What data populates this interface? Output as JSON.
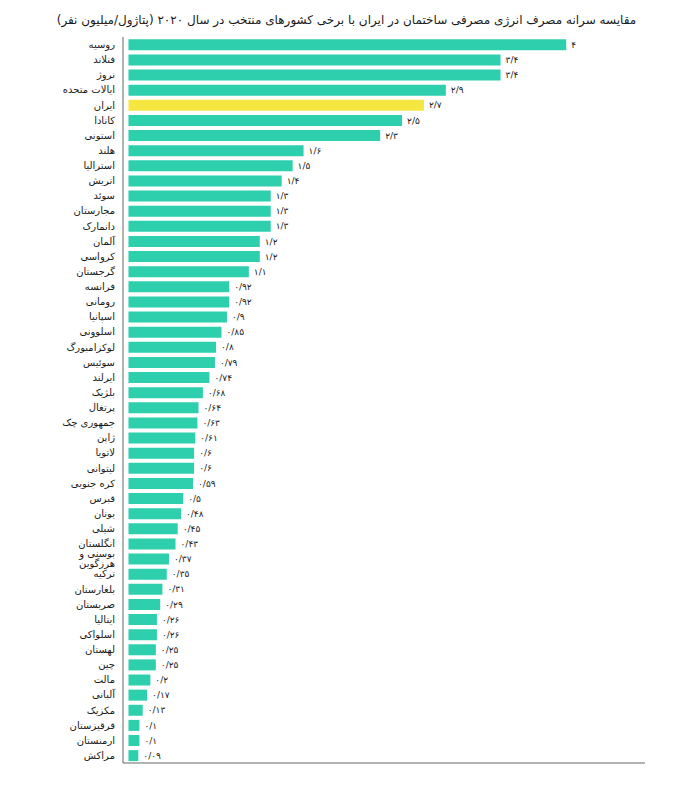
{
  "chart_data": {
    "type": "bar",
    "orientation": "horizontal",
    "title": "مقایسه سرانه مصرف انرژی مصرفی ساختمان در ایران با برخی کشورهای منتخب در سال ۲۰۲۰ (پتاژول/میلیون نفر)",
    "categories": [
      "روسیه",
      "فنلاند",
      "نروژ",
      "ایالات متحده",
      "ایران",
      "کانادا",
      "استونی",
      "هلند",
      "استرالیا",
      "اتریش",
      "سوئد",
      "مجارستان",
      "دانمارک",
      "آلمان",
      "کرواسی",
      "گرجستان",
      "فرانسه",
      "رومانی",
      "اسپانیا",
      "اسلوونی",
      "لوکزامبورگ",
      "سوئیس",
      "ایرلند",
      "بلژیک",
      "پرتغال",
      "جمهوری چک",
      "ژاپن",
      "لاتویا",
      "لیتوانی",
      "کره جنوبی",
      "قبرس",
      "یونان",
      "شیلی",
      "انگلستان",
      "بوسنی و هرزگوین",
      "ترکیه",
      "بلغارستان",
      "صربستان",
      "ایتالیا",
      "اسلواکی",
      "لهستان",
      "چین",
      "مالت",
      "آلبانی",
      "مکزیک",
      "قرقیزستان",
      "ارمنستان",
      "مراکش"
    ],
    "values": [
      4.0,
      3.4,
      3.4,
      2.9,
      2.7,
      2.5,
      2.3,
      1.6,
      1.5,
      1.4,
      1.3,
      1.3,
      1.3,
      1.2,
      1.2,
      1.1,
      0.92,
      0.92,
      0.9,
      0.85,
      0.8,
      0.79,
      0.74,
      0.68,
      0.64,
      0.63,
      0.61,
      0.6,
      0.6,
      0.59,
      0.5,
      0.48,
      0.45,
      0.43,
      0.37,
      0.35,
      0.31,
      0.29,
      0.26,
      0.26,
      0.25,
      0.25,
      0.2,
      0.17,
      0.13,
      0.1,
      0.1,
      0.09
    ],
    "value_labels": [
      "۴",
      "۳/۴",
      "۳/۴",
      "۲/۹",
      "۲/۷",
      "۲/۵",
      "۲/۳",
      "۱/۶",
      "۱/۵",
      "۱/۴",
      "۱/۳",
      "۱/۳",
      "۱/۳",
      "۱/۲",
      "۱/۲",
      "۱/۱",
      "۰/۹۲",
      "۰/۹۲",
      "۰/۹",
      "۰/۸۵",
      "۰/۸",
      "۰/۷۹",
      "۰/۷۴",
      "۰/۶۸",
      "۰/۶۴",
      "۰/۶۳",
      "۰/۶۱",
      "۰/۶",
      "۰/۶",
      "۰/۵۹",
      "۰/۵",
      "۰/۴۸",
      "۰/۴۵",
      "۰/۴۳",
      "۰/۳۷",
      "۰/۳۵",
      "۰/۳۱",
      "۰/۲۹",
      "۰/۲۶",
      "۰/۲۶",
      "۰/۲۵",
      "۰/۲۵",
      "۰/۲",
      "۰/۱۷",
      "۰/۱۳",
      "۰/۱",
      "۰/۱",
      "۰/۰۹"
    ],
    "colors": [
      "#2dcfac",
      "#2dcfac",
      "#2dcfac",
      "#2dcfac",
      "#f5e642",
      "#2dcfac",
      "#2dcfac",
      "#2dcfac",
      "#2dcfac",
      "#2dcfac",
      "#2dcfac",
      "#2dcfac",
      "#2dcfac",
      "#2dcfac",
      "#2dcfac",
      "#2dcfac",
      "#2dcfac",
      "#2dcfac",
      "#2dcfac",
      "#2dcfac",
      "#2dcfac",
      "#2dcfac",
      "#2dcfac",
      "#2dcfac",
      "#2dcfac",
      "#2dcfac",
      "#2dcfac",
      "#2dcfac",
      "#2dcfac",
      "#2dcfac",
      "#2dcfac",
      "#2dcfac",
      "#2dcfac",
      "#2dcfac",
      "#2dcfac",
      "#2dcfac",
      "#2dcfac",
      "#2dcfac",
      "#2dcfac",
      "#2dcfac",
      "#2dcfac",
      "#2dcfac",
      "#2dcfac",
      "#2dcfac",
      "#2dcfac",
      "#2dcfac",
      "#2dcfac",
      "#2dcfac"
    ],
    "xlim": [
      -0.05,
      4.72
    ],
    "data_labels": true,
    "tick_labels": "y",
    "grid": false
  }
}
